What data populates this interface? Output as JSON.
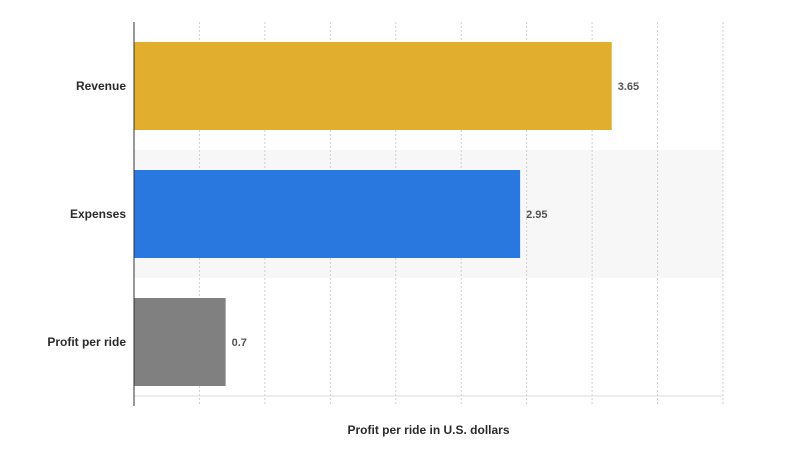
{
  "chart_data": {
    "type": "bar",
    "orientation": "horizontal",
    "categories": [
      "Revenue",
      "Expenses",
      "Profit per ride"
    ],
    "values": [
      3.65,
      2.95,
      0.7
    ],
    "value_labels": [
      "3.65",
      "2.95",
      "0.7"
    ],
    "colors": [
      "#E1AF2D",
      "#2878E0",
      "#808080"
    ],
    "xlabel": "Profit per ride in U.S. dollars",
    "xlim": [
      0,
      4.5
    ],
    "grid": true,
    "grid_step": 0.5
  }
}
